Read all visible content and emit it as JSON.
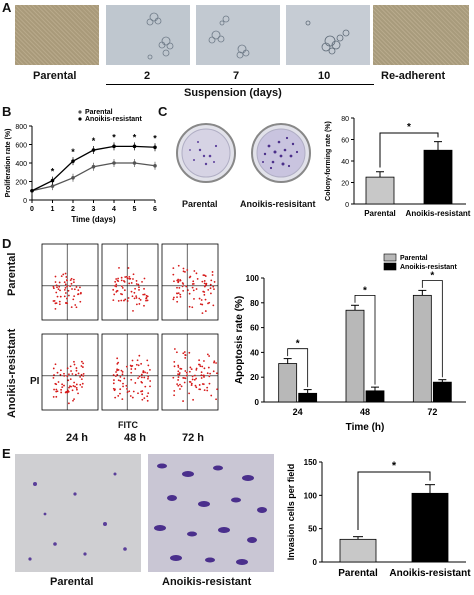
{
  "panels": {
    "A": {
      "letter": "A",
      "image_labels": [
        "Parental",
        "2",
        "7",
        "10",
        "Re-adherent"
      ],
      "group_label": "Suspension (days)"
    },
    "B": {
      "letter": "B",
      "legend": [
        "Parental",
        "Anoikis-resistant"
      ],
      "star": "*"
    },
    "C": {
      "letter": "C",
      "image_labels": [
        "Parental",
        "Anoikis-resisitant"
      ],
      "star": "*"
    },
    "D": {
      "letter": "D",
      "row_labels": [
        "Parental",
        "Anoikis-resistant"
      ],
      "y_axis_label": "PI",
      "x_axis_label": "FITC",
      "time_labels": [
        "24 h",
        "48 h",
        "72 h"
      ],
      "star": "*"
    },
    "E": {
      "letter": "E",
      "image_labels": [
        "Parental",
        "Anoikis-resistant"
      ],
      "star": "*"
    }
  },
  "chart_data": [
    {
      "id": "B",
      "type": "line",
      "xlabel": "Time (days)",
      "ylabel": "Proliferation rate (%)",
      "x": [
        0,
        1,
        2,
        3,
        4,
        5,
        6
      ],
      "xlim": [
        0,
        6
      ],
      "ylim": [
        0,
        800
      ],
      "yticks": [
        0,
        200,
        400,
        600,
        800
      ],
      "series": [
        {
          "name": "Parental",
          "values": [
            100,
            150,
            240,
            360,
            400,
            400,
            370
          ]
        },
        {
          "name": "Anoikis-resistant",
          "values": [
            100,
            210,
            420,
            540,
            580,
            580,
            570
          ]
        }
      ],
      "significance_at": [
        1,
        2,
        3,
        4,
        5,
        6
      ]
    },
    {
      "id": "C",
      "type": "bar",
      "ylabel": "Colony-forming rate (%)",
      "categories": [
        "Parental",
        "Anoikis-resistant"
      ],
      "values": [
        25,
        50
      ],
      "errors": [
        5,
        8
      ],
      "ylim": [
        0,
        80
      ],
      "yticks": [
        0,
        20,
        40,
        60,
        80
      ],
      "colors": [
        "#c8c8c8",
        "#000000"
      ]
    },
    {
      "id": "D",
      "type": "bar",
      "xlabel": "Time (h)",
      "ylabel": "Apoptosis rate (%)",
      "categories": [
        "24",
        "48",
        "72"
      ],
      "ylim": [
        0,
        100
      ],
      "yticks": [
        0,
        20,
        40,
        60,
        80,
        100
      ],
      "series": [
        {
          "name": "Parental",
          "values": [
            31,
            74,
            86
          ],
          "errors": [
            4,
            4,
            4
          ],
          "color": "#b8b8b8"
        },
        {
          "name": "Anoikis-resistant",
          "values": [
            7,
            9,
            16
          ],
          "errors": [
            3,
            3,
            2
          ],
          "color": "#000000"
        }
      ]
    },
    {
      "id": "E",
      "type": "bar",
      "ylabel": "Invasion cells per field",
      "categories": [
        "Parental",
        "Anoikis-resistant"
      ],
      "values": [
        34,
        103
      ],
      "errors": [
        4,
        13
      ],
      "ylim": [
        0,
        150
      ],
      "yticks": [
        0,
        50,
        100,
        150
      ],
      "colors": [
        "#c8c8c8",
        "#000000"
      ]
    }
  ]
}
